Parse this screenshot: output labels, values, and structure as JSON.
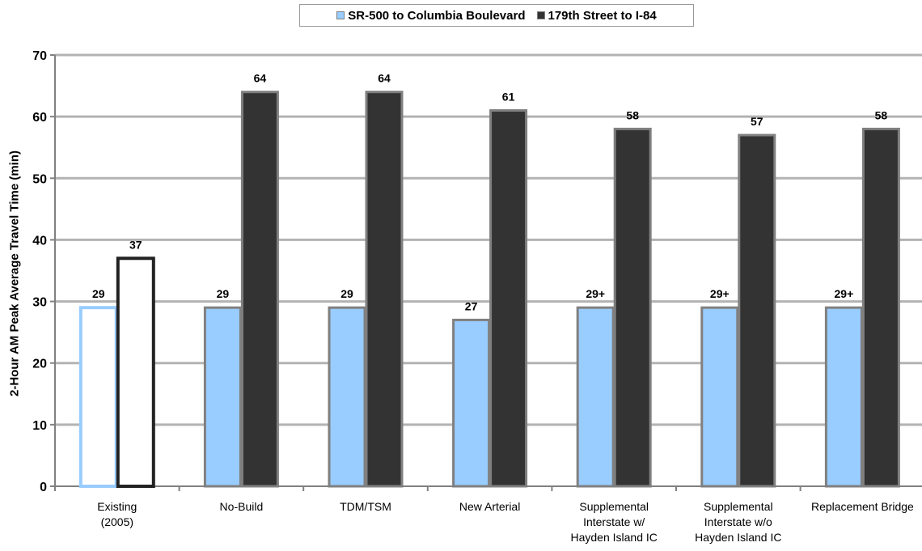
{
  "chart_data": {
    "type": "bar",
    "categories": [
      [
        "Existing",
        "(2005)"
      ],
      [
        "No-Build"
      ],
      [
        "TDM/TSM"
      ],
      [
        "New Arterial"
      ],
      [
        "Supplemental",
        "Interstate w/",
        "Hayden Island IC"
      ],
      [
        "Supplemental",
        "Interstate w/o",
        "Hayden Island IC"
      ],
      [
        "Replacement Bridge"
      ]
    ],
    "series": [
      {
        "name": "SR-500 to Columbia Boulevard",
        "values": [
          29,
          29,
          29,
          27,
          29,
          29,
          29
        ],
        "labels": [
          "29",
          "29",
          "29",
          "27",
          "29+",
          "29+",
          "29+"
        ],
        "color": "#99ccff"
      },
      {
        "name": "179th Street to I-84",
        "values": [
          37,
          64,
          64,
          61,
          58,
          57,
          58
        ],
        "labels": [
          "37",
          "64",
          "64",
          "61",
          "58",
          "57",
          "58"
        ],
        "color": "#333333"
      }
    ],
    "ylabel": "2-Hour AM Peak Average Travel Time (min)",
    "ylim": [
      0,
      70
    ],
    "yticks": [
      0,
      10,
      20,
      30,
      40,
      50,
      60,
      70
    ],
    "grid": true,
    "legend": "top",
    "highlight_first_category_outline": true,
    "bar_edge_color": "#808080",
    "grid_color": "#b3b3b3"
  }
}
